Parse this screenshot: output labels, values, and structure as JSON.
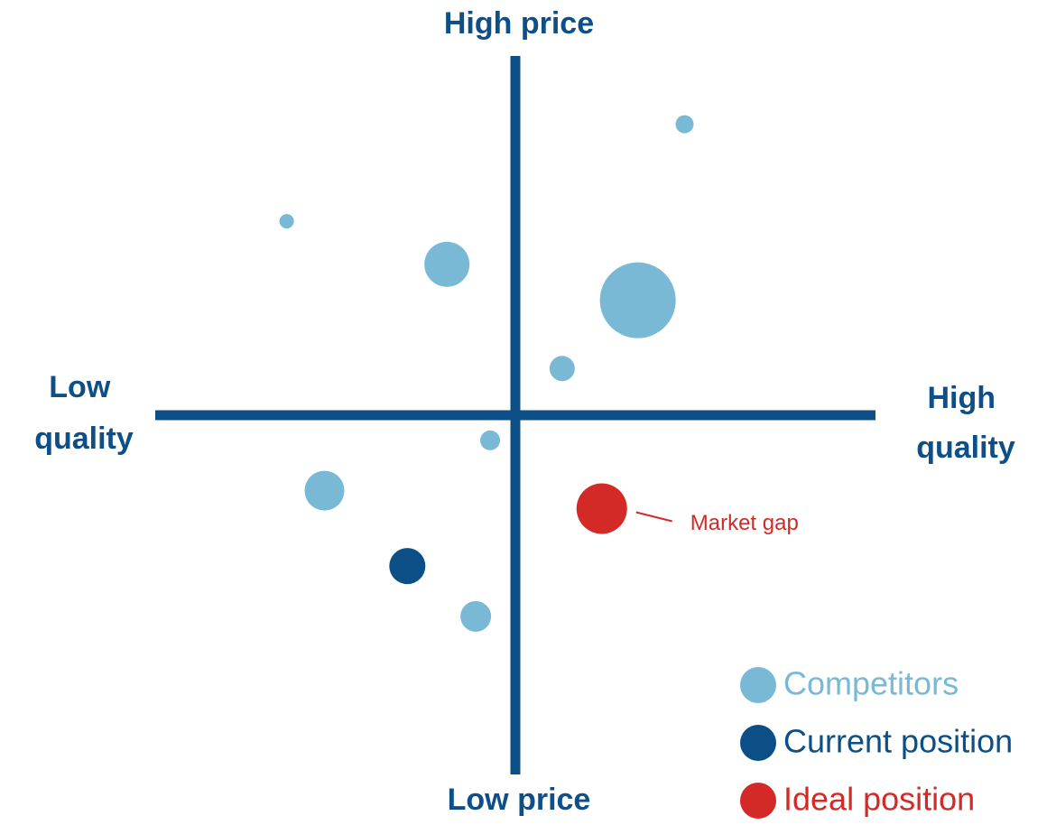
{
  "chart_data": {
    "type": "scatter",
    "ylabel_high": "High price",
    "ylabel_low": "Low price",
    "xlabel_low": [
      "Low",
      "quality"
    ],
    "xlabel_high": [
      "High",
      "quality"
    ],
    "annotation": "Market gap",
    "xlim": [
      -10,
      10
    ],
    "ylim": [
      -10,
      10
    ],
    "legend": "lower right",
    "axis_color": "#0b4f86",
    "series": [
      {
        "name": "Competitors",
        "color": "#7ab9d6",
        "x": [
          4.7,
          -6.35,
          -1.9,
          3.4,
          1.3,
          -0.7,
          -5.3,
          -1.1
        ],
        "values": [
          8.1,
          5.4,
          4.2,
          3.2,
          1.3,
          -0.7,
          -2.1,
          -5.6
        ],
        "sizes": [
          10,
          8,
          25,
          42,
          14,
          11,
          22,
          17
        ]
      },
      {
        "name": "Current position",
        "color": "#0b4f86",
        "x": [
          -3.0
        ],
        "values": [
          -4.2
        ],
        "sizes": [
          20
        ]
      },
      {
        "name": "Ideal position",
        "color": "#d42a27",
        "x": [
          2.4
        ],
        "values": [
          -2.6
        ],
        "sizes": [
          28
        ]
      }
    ]
  }
}
